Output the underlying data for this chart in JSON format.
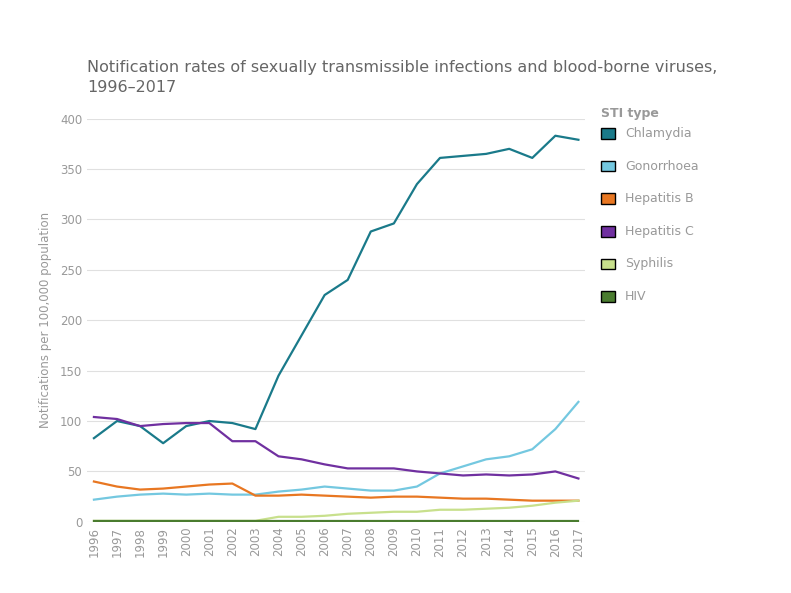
{
  "title": "Notification rates of sexually transmissible infections and blood-borne viruses,\n1996–2017",
  "ylabel": "Notifications per 100,000 population",
  "xlabel": "",
  "legend_title": "STI type",
  "ylim": [
    0,
    400
  ],
  "yticks": [
    0,
    50,
    100,
    150,
    200,
    250,
    300,
    350,
    400
  ],
  "years": [
    1996,
    1997,
    1998,
    1999,
    2000,
    2001,
    2002,
    2003,
    2004,
    2005,
    2006,
    2007,
    2008,
    2009,
    2010,
    2011,
    2012,
    2013,
    2014,
    2015,
    2016,
    2017
  ],
  "series": {
    "Chlamydia": {
      "color": "#1a7a8a",
      "values": [
        83,
        100,
        95,
        78,
        95,
        100,
        98,
        92,
        145,
        185,
        225,
        240,
        288,
        296,
        335,
        361,
        363,
        365,
        370,
        361,
        383,
        379
      ]
    },
    "Gonorrhoea": {
      "color": "#74c8e0",
      "values": [
        22,
        25,
        27,
        28,
        27,
        28,
        27,
        27,
        30,
        32,
        35,
        33,
        31,
        31,
        35,
        48,
        55,
        62,
        65,
        72,
        92,
        119
      ]
    },
    "Hepatitis B": {
      "color": "#e87722",
      "values": [
        40,
        35,
        32,
        33,
        35,
        37,
        38,
        26,
        26,
        27,
        26,
        25,
        24,
        25,
        25,
        24,
        23,
        23,
        22,
        21,
        21,
        21
      ]
    },
    "Hepatitis C": {
      "color": "#7030a0",
      "values": [
        104,
        102,
        95,
        97,
        98,
        98,
        80,
        80,
        65,
        62,
        57,
        53,
        53,
        53,
        50,
        48,
        46,
        47,
        46,
        47,
        50,
        43
      ]
    },
    "Syphilis": {
      "color": "#c8e08c",
      "values": [
        1,
        1,
        1,
        1,
        1,
        1,
        1,
        1,
        5,
        5,
        6,
        8,
        9,
        10,
        10,
        12,
        12,
        13,
        14,
        16,
        19,
        21
      ]
    },
    "HIV": {
      "color": "#4a7c2f",
      "values": [
        1,
        1,
        1,
        1,
        1,
        1,
        1,
        1,
        1,
        1,
        1,
        1,
        1,
        1,
        1,
        1,
        1,
        1,
        1,
        1,
        1,
        1
      ]
    }
  },
  "background_color": "#ffffff",
  "grid_color": "#e0e0e0",
  "title_color": "#666666",
  "label_color": "#999999",
  "tick_color": "#999999",
  "title_fontsize": 11.5,
  "axis_fontsize": 8.5,
  "legend_fontsize": 9
}
